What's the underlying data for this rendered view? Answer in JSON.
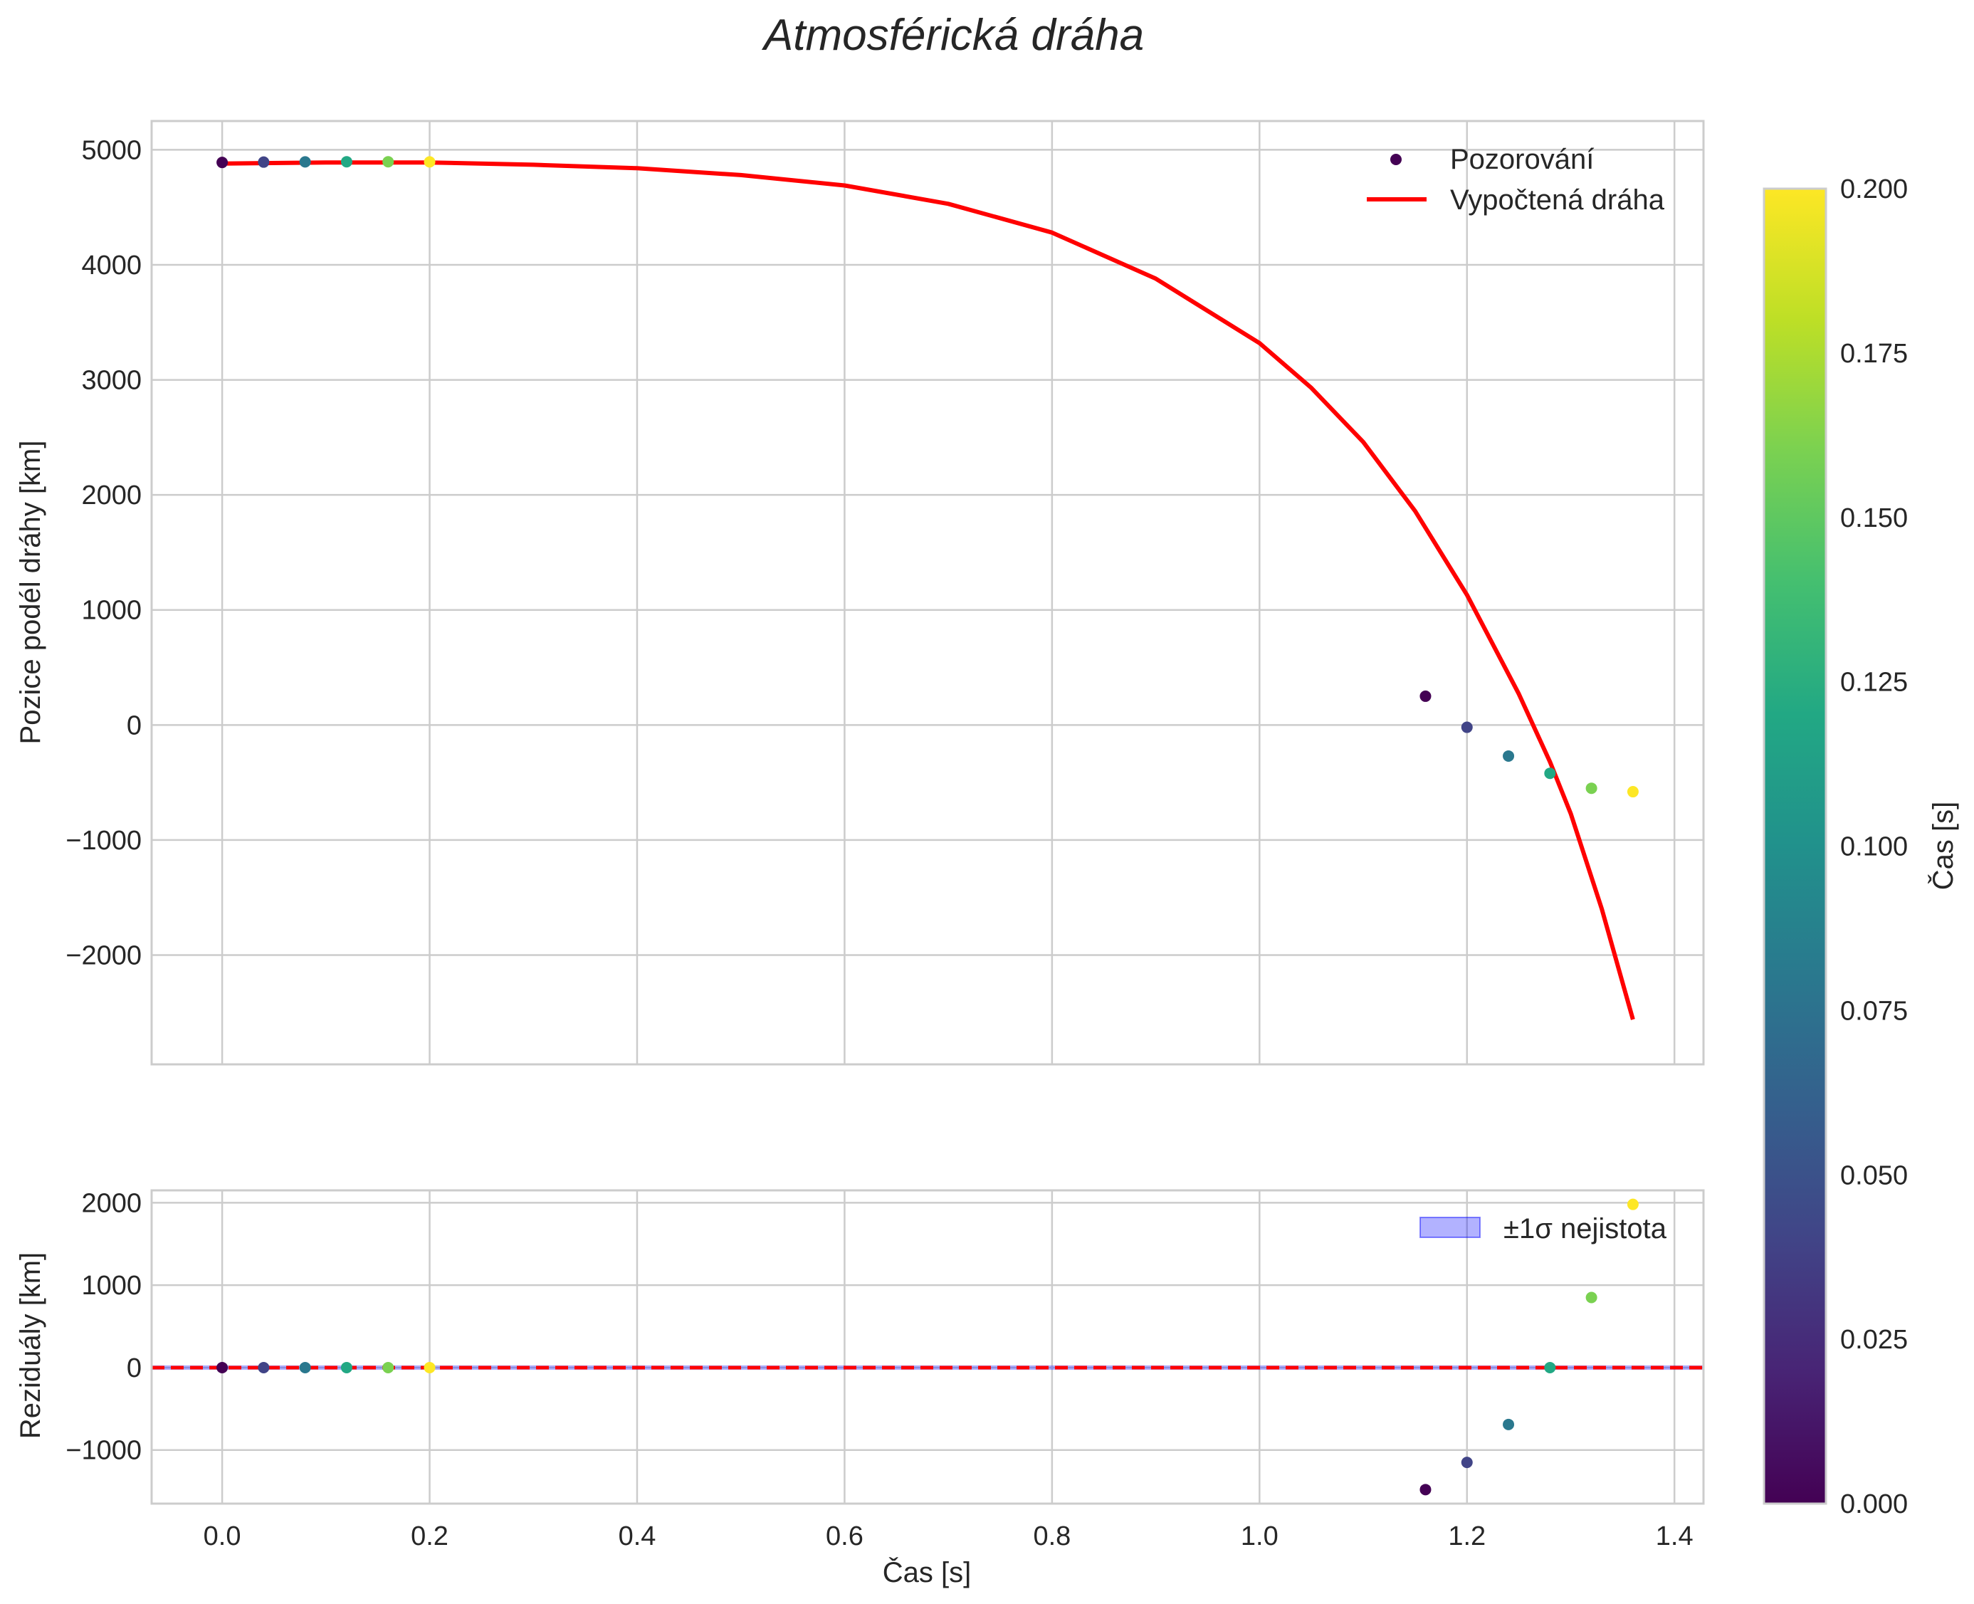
{
  "chart_data": [
    {
      "type": "scatter+line",
      "panel": "top",
      "title": "Atmosférická dráha",
      "xlabel": "",
      "ylabel": "Pozice podél dráhy [km]",
      "xlim": [
        -0.068,
        1.428
      ],
      "ylim": [
        -2950,
        5250
      ],
      "xticks": [
        0.0,
        0.2,
        0.4,
        0.6,
        0.8,
        1.0,
        1.2,
        1.4
      ],
      "yticks": [
        -2000,
        -1000,
        0,
        1000,
        2000,
        3000,
        4000,
        5000
      ],
      "ytick_labels": [
        "−2000",
        "−1000",
        "0",
        "1000",
        "2000",
        "3000",
        "4000",
        "5000"
      ],
      "grid": true,
      "legend_position": "upper right",
      "legend": [
        "Pozorování",
        "Vypočtená dráha"
      ],
      "series": [
        {
          "name": "Pozorování",
          "kind": "scatter",
          "points": [
            {
              "x": 0.0,
              "y": 4890,
              "c": 0.0
            },
            {
              "x": 0.04,
              "y": 4893,
              "c": 0.04
            },
            {
              "x": 0.08,
              "y": 4895,
              "c": 0.08
            },
            {
              "x": 0.12,
              "y": 4896,
              "c": 0.12
            },
            {
              "x": 0.16,
              "y": 4896,
              "c": 0.16
            },
            {
              "x": 0.2,
              "y": 4895,
              "c": 0.2
            },
            {
              "x": 1.16,
              "y": 250,
              "c": 0.0
            },
            {
              "x": 1.2,
              "y": -20,
              "c": 0.04
            },
            {
              "x": 1.24,
              "y": -270,
              "c": 0.08
            },
            {
              "x": 1.28,
              "y": -420,
              "c": 0.12
            },
            {
              "x": 1.32,
              "y": -550,
              "c": 0.16
            },
            {
              "x": 1.36,
              "y": -580,
              "c": 0.2
            }
          ]
        },
        {
          "name": "Vypočtená dráha",
          "kind": "line",
          "color": "#ff0000",
          "points": [
            {
              "x": 0.0,
              "y": 4880
            },
            {
              "x": 0.1,
              "y": 4890
            },
            {
              "x": 0.2,
              "y": 4890
            },
            {
              "x": 0.3,
              "y": 4870
            },
            {
              "x": 0.4,
              "y": 4840
            },
            {
              "x": 0.5,
              "y": 4780
            },
            {
              "x": 0.6,
              "y": 4690
            },
            {
              "x": 0.7,
              "y": 4530
            },
            {
              "x": 0.8,
              "y": 4280
            },
            {
              "x": 0.9,
              "y": 3880
            },
            {
              "x": 1.0,
              "y": 3320
            },
            {
              "x": 1.05,
              "y": 2930
            },
            {
              "x": 1.1,
              "y": 2460
            },
            {
              "x": 1.15,
              "y": 1860
            },
            {
              "x": 1.2,
              "y": 1130
            },
            {
              "x": 1.25,
              "y": 270
            },
            {
              "x": 1.28,
              "y": -320
            },
            {
              "x": 1.3,
              "y": -770
            },
            {
              "x": 1.33,
              "y": -1600
            },
            {
              "x": 1.36,
              "y": -2560
            }
          ]
        }
      ]
    },
    {
      "type": "scatter",
      "panel": "bottom",
      "xlabel": "Čas [s]",
      "ylabel": "Reziduály [km]",
      "xlim": [
        -0.068,
        1.428
      ],
      "ylim": [
        -1650,
        2150
      ],
      "xticks": [
        0.0,
        0.2,
        0.4,
        0.6,
        0.8,
        1.0,
        1.2,
        1.4
      ],
      "xtick_labels": [
        "0.0",
        "0.2",
        "0.4",
        "0.6",
        "0.8",
        "1.0",
        "1.2",
        "1.4"
      ],
      "yticks": [
        -1000,
        0,
        1000,
        2000
      ],
      "ytick_labels": [
        "−1000",
        "0",
        "1000",
        "2000"
      ],
      "grid": true,
      "legend_position": "upper right",
      "legend": [
        "±1σ nejistota"
      ],
      "band": {
        "name": "±1σ nejistota",
        "low": -10,
        "high": 10,
        "color": "#0000ff"
      },
      "zero_line": {
        "y": 0,
        "color": "#ff0000",
        "style": "dashed"
      },
      "series": [
        {
          "name": "Reziduály",
          "kind": "scatter",
          "points": [
            {
              "x": 0.0,
              "y": 0,
              "c": 0.0
            },
            {
              "x": 0.04,
              "y": 0,
              "c": 0.04
            },
            {
              "x": 0.08,
              "y": 0,
              "c": 0.08
            },
            {
              "x": 0.12,
              "y": 0,
              "c": 0.12
            },
            {
              "x": 0.16,
              "y": 0,
              "c": 0.16
            },
            {
              "x": 0.2,
              "y": 0,
              "c": 0.2
            },
            {
              "x": 1.16,
              "y": -1480,
              "c": 0.0
            },
            {
              "x": 1.2,
              "y": -1150,
              "c": 0.04
            },
            {
              "x": 1.24,
              "y": -690,
              "c": 0.08
            },
            {
              "x": 1.28,
              "y": 0,
              "c": 0.12
            },
            {
              "x": 1.32,
              "y": 850,
              "c": 0.16
            },
            {
              "x": 1.36,
              "y": 1980,
              "c": 0.2
            }
          ]
        }
      ]
    },
    {
      "type": "colorbar",
      "label": "Čas [s]",
      "colormap": "viridis",
      "range": [
        0.0,
        0.2
      ],
      "ticks": [
        0.0,
        0.025,
        0.05,
        0.075,
        0.1,
        0.125,
        0.15,
        0.175,
        0.2
      ],
      "tick_labels": [
        "0.000",
        "0.025",
        "0.050",
        "0.075",
        "0.100",
        "0.125",
        "0.150",
        "0.175",
        "0.200"
      ]
    }
  ]
}
